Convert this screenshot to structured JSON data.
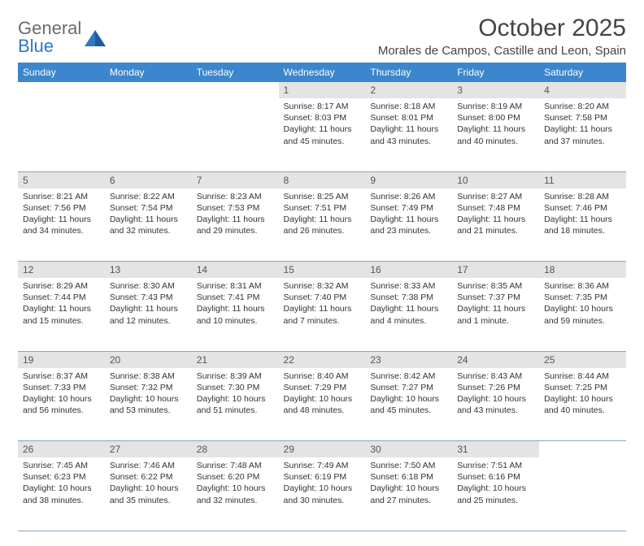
{
  "logo": {
    "line1": "General",
    "line2": "Blue"
  },
  "title": "October 2025",
  "location": "Morales de Campos, Castille and Leon, Spain",
  "colors": {
    "header_bg": "#3b86cc",
    "header_text": "#ffffff",
    "daynum_bg": "#e4e4e4",
    "daynum_text": "#555555",
    "border": "#8aa4b8",
    "logo_gray": "#6b6b6b",
    "logo_blue": "#2f78c4"
  },
  "weekdays": [
    "Sunday",
    "Monday",
    "Tuesday",
    "Wednesday",
    "Thursday",
    "Friday",
    "Saturday"
  ],
  "weeks": [
    {
      "nums": [
        "",
        "",
        "",
        "1",
        "2",
        "3",
        "4"
      ],
      "cells": [
        null,
        null,
        null,
        {
          "sunrise": "8:17 AM",
          "sunset": "8:03 PM",
          "daylight": "11 hours and 45 minutes."
        },
        {
          "sunrise": "8:18 AM",
          "sunset": "8:01 PM",
          "daylight": "11 hours and 43 minutes."
        },
        {
          "sunrise": "8:19 AM",
          "sunset": "8:00 PM",
          "daylight": "11 hours and 40 minutes."
        },
        {
          "sunrise": "8:20 AM",
          "sunset": "7:58 PM",
          "daylight": "11 hours and 37 minutes."
        }
      ]
    },
    {
      "nums": [
        "5",
        "6",
        "7",
        "8",
        "9",
        "10",
        "11"
      ],
      "cells": [
        {
          "sunrise": "8:21 AM",
          "sunset": "7:56 PM",
          "daylight": "11 hours and 34 minutes."
        },
        {
          "sunrise": "8:22 AM",
          "sunset": "7:54 PM",
          "daylight": "11 hours and 32 minutes."
        },
        {
          "sunrise": "8:23 AM",
          "sunset": "7:53 PM",
          "daylight": "11 hours and 29 minutes."
        },
        {
          "sunrise": "8:25 AM",
          "sunset": "7:51 PM",
          "daylight": "11 hours and 26 minutes."
        },
        {
          "sunrise": "8:26 AM",
          "sunset": "7:49 PM",
          "daylight": "11 hours and 23 minutes."
        },
        {
          "sunrise": "8:27 AM",
          "sunset": "7:48 PM",
          "daylight": "11 hours and 21 minutes."
        },
        {
          "sunrise": "8:28 AM",
          "sunset": "7:46 PM",
          "daylight": "11 hours and 18 minutes."
        }
      ]
    },
    {
      "nums": [
        "12",
        "13",
        "14",
        "15",
        "16",
        "17",
        "18"
      ],
      "cells": [
        {
          "sunrise": "8:29 AM",
          "sunset": "7:44 PM",
          "daylight": "11 hours and 15 minutes."
        },
        {
          "sunrise": "8:30 AM",
          "sunset": "7:43 PM",
          "daylight": "11 hours and 12 minutes."
        },
        {
          "sunrise": "8:31 AM",
          "sunset": "7:41 PM",
          "daylight": "11 hours and 10 minutes."
        },
        {
          "sunrise": "8:32 AM",
          "sunset": "7:40 PM",
          "daylight": "11 hours and 7 minutes."
        },
        {
          "sunrise": "8:33 AM",
          "sunset": "7:38 PM",
          "daylight": "11 hours and 4 minutes."
        },
        {
          "sunrise": "8:35 AM",
          "sunset": "7:37 PM",
          "daylight": "11 hours and 1 minute."
        },
        {
          "sunrise": "8:36 AM",
          "sunset": "7:35 PM",
          "daylight": "10 hours and 59 minutes."
        }
      ]
    },
    {
      "nums": [
        "19",
        "20",
        "21",
        "22",
        "23",
        "24",
        "25"
      ],
      "cells": [
        {
          "sunrise": "8:37 AM",
          "sunset": "7:33 PM",
          "daylight": "10 hours and 56 minutes."
        },
        {
          "sunrise": "8:38 AM",
          "sunset": "7:32 PM",
          "daylight": "10 hours and 53 minutes."
        },
        {
          "sunrise": "8:39 AM",
          "sunset": "7:30 PM",
          "daylight": "10 hours and 51 minutes."
        },
        {
          "sunrise": "8:40 AM",
          "sunset": "7:29 PM",
          "daylight": "10 hours and 48 minutes."
        },
        {
          "sunrise": "8:42 AM",
          "sunset": "7:27 PM",
          "daylight": "10 hours and 45 minutes."
        },
        {
          "sunrise": "8:43 AM",
          "sunset": "7:26 PM",
          "daylight": "10 hours and 43 minutes."
        },
        {
          "sunrise": "8:44 AM",
          "sunset": "7:25 PM",
          "daylight": "10 hours and 40 minutes."
        }
      ]
    },
    {
      "nums": [
        "26",
        "27",
        "28",
        "29",
        "30",
        "31",
        ""
      ],
      "cells": [
        {
          "sunrise": "7:45 AM",
          "sunset": "6:23 PM",
          "daylight": "10 hours and 38 minutes."
        },
        {
          "sunrise": "7:46 AM",
          "sunset": "6:22 PM",
          "daylight": "10 hours and 35 minutes."
        },
        {
          "sunrise": "7:48 AM",
          "sunset": "6:20 PM",
          "daylight": "10 hours and 32 minutes."
        },
        {
          "sunrise": "7:49 AM",
          "sunset": "6:19 PM",
          "daylight": "10 hours and 30 minutes."
        },
        {
          "sunrise": "7:50 AM",
          "sunset": "6:18 PM",
          "daylight": "10 hours and 27 minutes."
        },
        {
          "sunrise": "7:51 AM",
          "sunset": "6:16 PM",
          "daylight": "10 hours and 25 minutes."
        },
        null
      ]
    }
  ],
  "labels": {
    "sunrise": "Sunrise:",
    "sunset": "Sunset:",
    "daylight": "Daylight:"
  }
}
